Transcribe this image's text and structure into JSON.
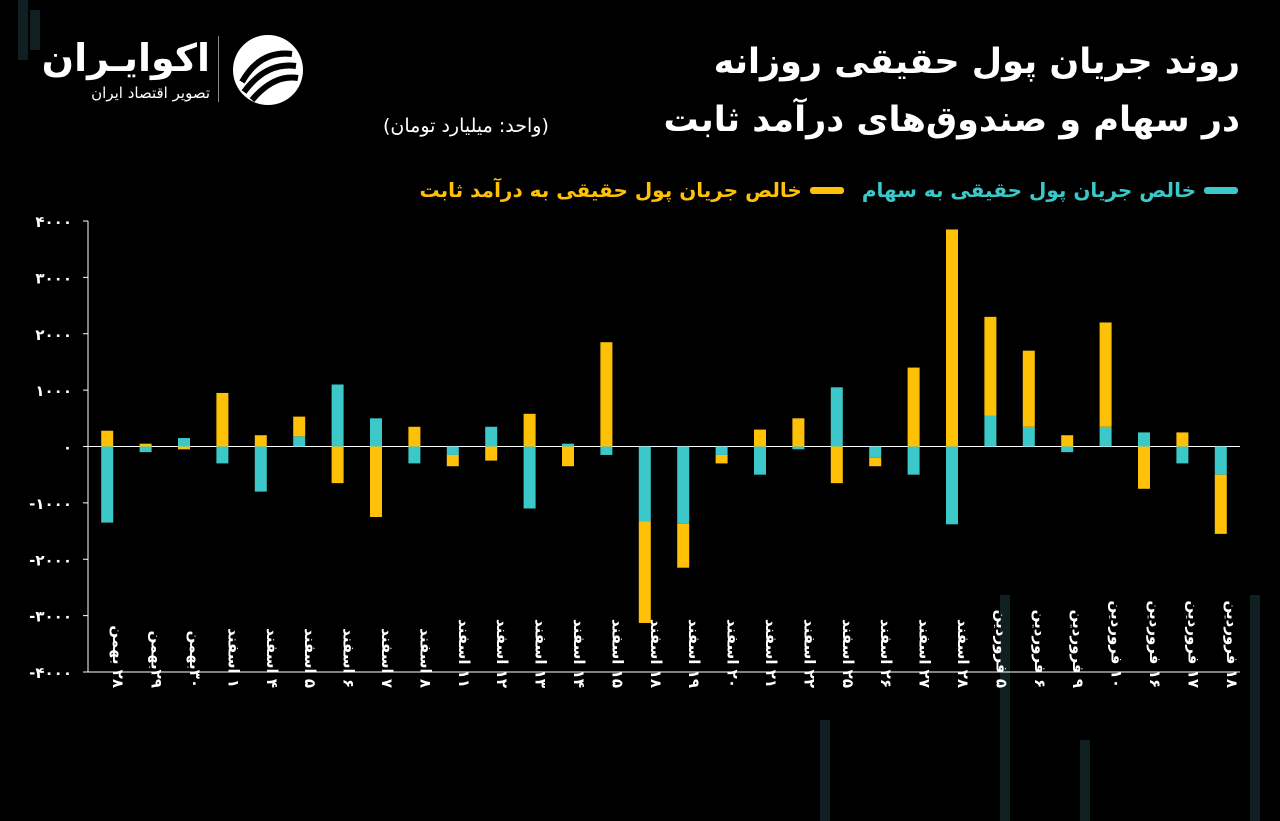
{
  "brand": {
    "name": "اکوایـران",
    "tagline": "تصویر اقتصاد ایران"
  },
  "title": {
    "line1": "روند جریان پول حقیقی روزانه",
    "line2": "در سهام و صندوق‌های درآمد ثابت",
    "unit": "(واحد: میلیارد تومان)"
  },
  "legend": {
    "stocks": "خالص جریان پول حقیقی به سهام",
    "fixed_income": "خالص جریان پول حقیقی به درآمد ثابت"
  },
  "colors": {
    "stocks": "#3cc8c8",
    "fixed_income": "#ffc107",
    "background": "#000000",
    "axis": "#ffffff"
  },
  "chart_data": {
    "type": "bar",
    "stacked": true,
    "ylim": [
      -4000,
      4000
    ],
    "yticks": [
      4000,
      3000,
      2000,
      1000,
      0,
      -1000,
      -2000,
      -3000,
      -4000
    ],
    "ytick_labels": [
      "۴۰۰۰",
      "۳۰۰۰",
      "۲۰۰۰",
      "۱۰۰۰",
      "۰",
      "-۱۰۰۰",
      "-۲۰۰۰",
      "-۳۰۰۰",
      "-۴۰۰۰"
    ],
    "grid": false,
    "legend_position": "top-right",
    "categories": [
      "۲۸ بهمن",
      "۲۹بهمن",
      "۳۰بهمن",
      "۱ اسفند",
      "۴ اسفند",
      "۵ اسفند",
      "۶ اسفند",
      "۷ اسفند",
      "۸ اسفند",
      "۱۱ اسفند",
      "۱۲ اسفند",
      "۱۳ اسفند",
      "۱۴ اسفند",
      "۱۵ اسفند",
      "۱۸ اسفند",
      "۱۹ اسفند",
      "۲۰ اسفند",
      "۲۱ اسفند",
      "۲۲ اسفند",
      "۲۵ اسفند",
      "۲۶ اسفند",
      "۲۷ اسفند",
      "۲۸ اسفند",
      "۵ فروردین",
      "۶ فروردین",
      "۹ فروردین",
      "۱۰ فروردین",
      "۱۶ فروردین",
      "۱۷ فروردین",
      "۱۸ فروردین"
    ],
    "series": [
      {
        "name": "خالص جریان پول حقیقی به سهام",
        "values": [
          -1350,
          -100,
          150,
          -300,
          -800,
          180,
          1100,
          500,
          -300,
          -150,
          350,
          -1100,
          50,
          -150,
          -1330,
          -1370,
          -150,
          -500,
          -50,
          1050,
          -200,
          -500,
          -1380,
          550,
          350,
          -100,
          350,
          250,
          -300,
          -500
        ]
      },
      {
        "name": "خالص جریان پول حقیقی به درآمد ثابت",
        "values": [
          280,
          50,
          -50,
          950,
          200,
          350,
          -650,
          -1250,
          350,
          -200,
          -250,
          580,
          -350,
          1850,
          -1800,
          -780,
          -150,
          300,
          500,
          -650,
          -150,
          1400,
          3850,
          1750,
          1350,
          200,
          1850,
          -750,
          250,
          -1050
        ]
      }
    ]
  }
}
